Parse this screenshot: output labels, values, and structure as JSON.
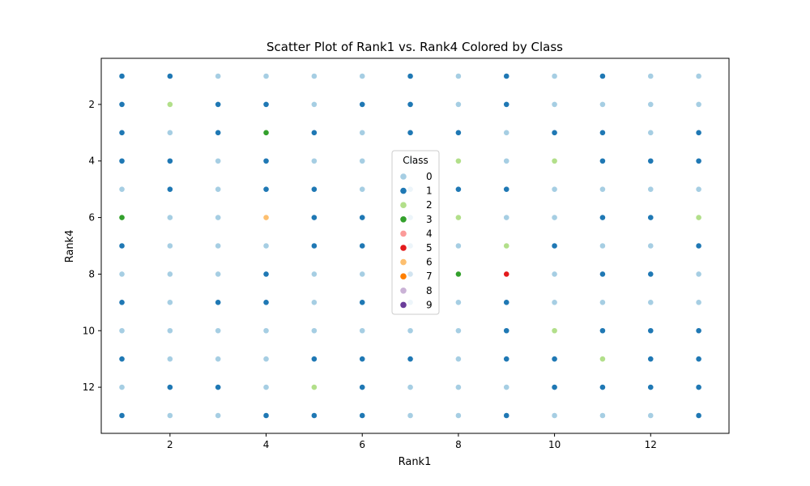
{
  "chart_data": {
    "type": "scatter",
    "title": "Scatter Plot of Rank1 vs. Rank4 Colored by Class",
    "xlabel": "Rank1",
    "ylabel": "Rank4",
    "xlim": [
      0.57,
      13.63
    ],
    "ylim": [
      13.63,
      0.37
    ],
    "y_inverted": true,
    "xticks": [
      2,
      4,
      6,
      8,
      10,
      12
    ],
    "yticks": [
      2,
      4,
      6,
      8,
      10,
      12
    ],
    "grid": false,
    "legend": {
      "title": "Class",
      "placement": "center",
      "entries": [
        {
          "label": "0",
          "color": "#a6cee3"
        },
        {
          "label": "1",
          "color": "#1f78b4"
        },
        {
          "label": "2",
          "color": "#b2df8a"
        },
        {
          "label": "3",
          "color": "#33a02c"
        },
        {
          "label": "4",
          "color": "#fb9a99"
        },
        {
          "label": "5",
          "color": "#e31a1c"
        },
        {
          "label": "6",
          "color": "#fdbf6f"
        },
        {
          "label": "7",
          "color": "#ff7f00"
        },
        {
          "label": "8",
          "color": "#cab2d6"
        },
        {
          "label": "9",
          "color": "#6a3d9a"
        }
      ]
    },
    "x_values": [
      1,
      2,
      3,
      4,
      5,
      6,
      7,
      8,
      9,
      10,
      11,
      12,
      13
    ],
    "y_values": [
      1,
      2,
      3,
      4,
      5,
      6,
      7,
      8,
      9,
      10,
      11,
      12,
      13
    ],
    "class_grid": [
      [
        1,
        1,
        0,
        0,
        0,
        0,
        1,
        0,
        1,
        0,
        1,
        0,
        0
      ],
      [
        1,
        2,
        1,
        1,
        0,
        1,
        1,
        0,
        1,
        0,
        0,
        0,
        0
      ],
      [
        1,
        0,
        1,
        3,
        1,
        0,
        1,
        1,
        0,
        1,
        1,
        0,
        1
      ],
      [
        1,
        1,
        0,
        1,
        0,
        0,
        0,
        2,
        0,
        2,
        1,
        1,
        1
      ],
      [
        0,
        1,
        0,
        1,
        1,
        0,
        0,
        1,
        1,
        0,
        0,
        0,
        0
      ],
      [
        3,
        0,
        0,
        6,
        1,
        1,
        0,
        2,
        0,
        0,
        1,
        1,
        2
      ],
      [
        1,
        0,
        0,
        0,
        1,
        1,
        0,
        0,
        2,
        1,
        0,
        0,
        1
      ],
      [
        0,
        0,
        0,
        1,
        0,
        0,
        1,
        3,
        5,
        0,
        1,
        1,
        0
      ],
      [
        1,
        0,
        1,
        1,
        0,
        1,
        0,
        0,
        1,
        0,
        0,
        0,
        0
      ],
      [
        0,
        0,
        0,
        0,
        0,
        0,
        0,
        0,
        1,
        2,
        1,
        1,
        1
      ],
      [
        1,
        0,
        0,
        0,
        1,
        1,
        1,
        0,
        1,
        1,
        2,
        1,
        1
      ],
      [
        0,
        1,
        1,
        0,
        2,
        1,
        0,
        0,
        0,
        1,
        1,
        1,
        1
      ],
      [
        1,
        0,
        0,
        1,
        1,
        1,
        0,
        0,
        1,
        0,
        0,
        0,
        1
      ]
    ]
  }
}
